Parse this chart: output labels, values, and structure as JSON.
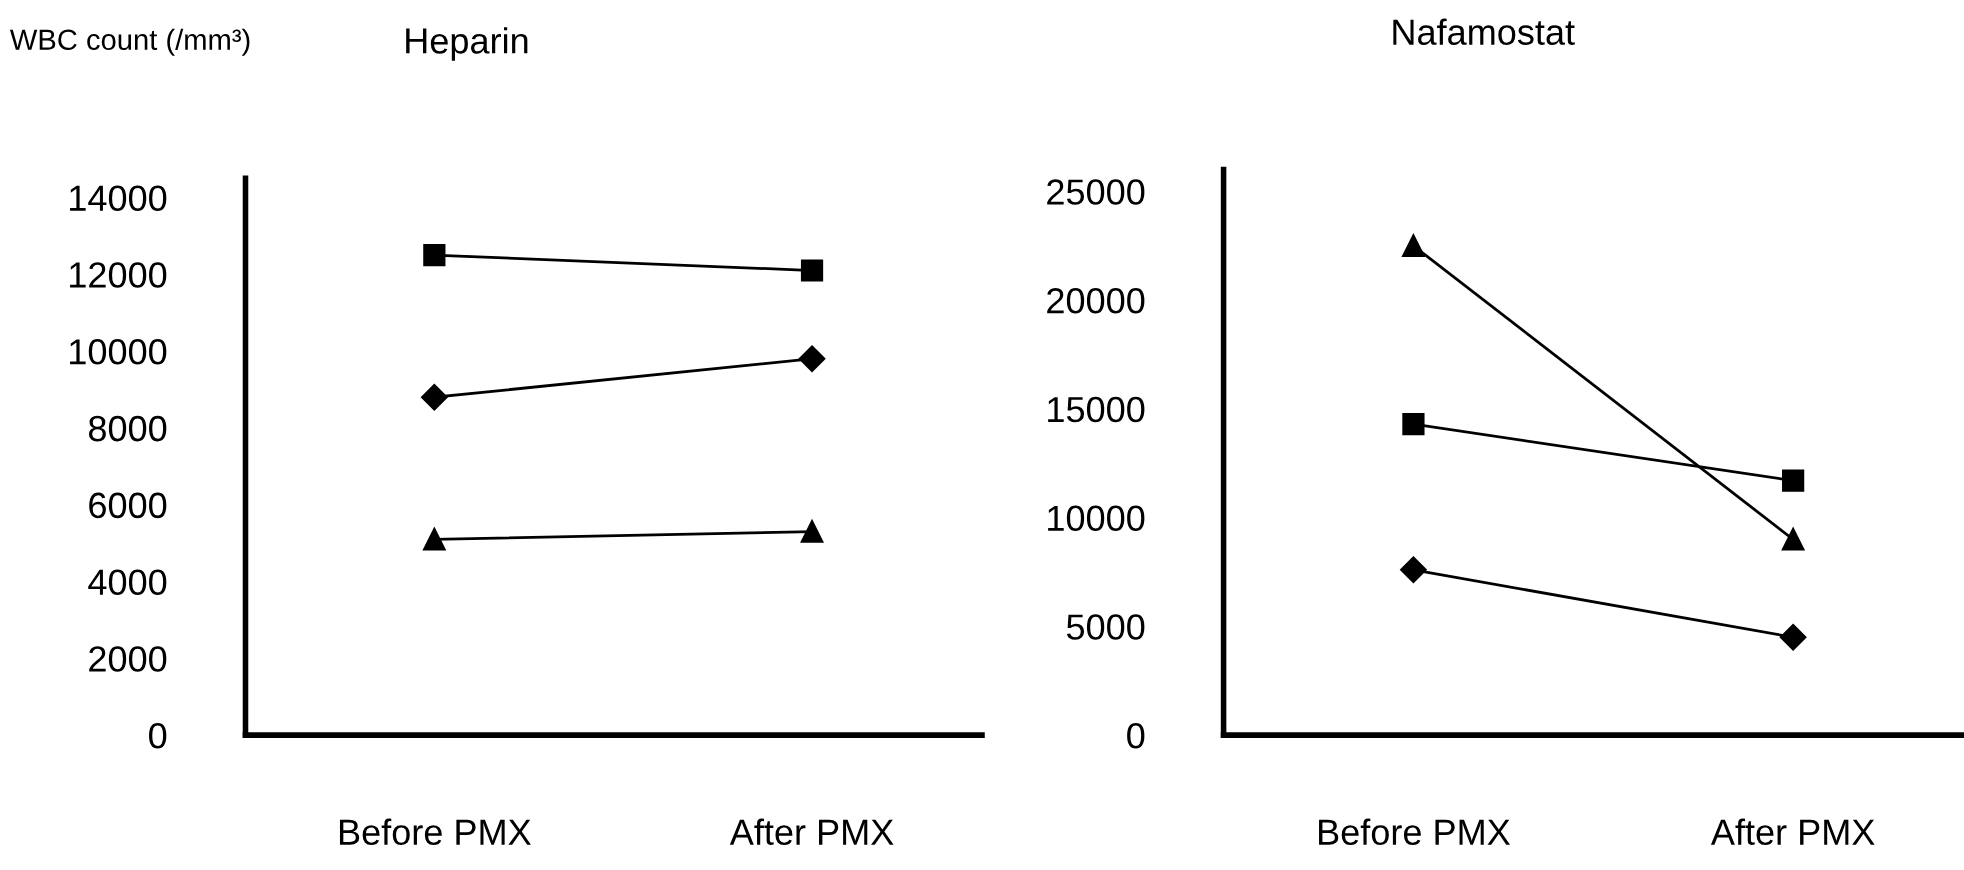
{
  "chart_data": [
    {
      "type": "line",
      "title": "Heparin",
      "ylabel": "WBC count (/mm³)",
      "categories": [
        "Before PMX",
        "After PMX"
      ],
      "ylim": [
        0,
        14500
      ],
      "yticks": [
        0,
        2000,
        4000,
        6000,
        8000,
        10000,
        12000,
        14000
      ],
      "grid": false,
      "legend": false,
      "line_style": "solid",
      "series": [
        {
          "color": "#000000",
          "marker": "square",
          "values": [
            12500,
            12100
          ]
        },
        {
          "color": "#000000",
          "marker": "diamond",
          "values": [
            8800,
            9800
          ]
        },
        {
          "color": "#000000",
          "marker": "triangle",
          "values": [
            5100,
            5300
          ]
        }
      ]
    },
    {
      "type": "line",
      "title": "Nafamostat",
      "categories": [
        "Before PMX",
        "After PMX"
      ],
      "ylim": [
        0,
        26000
      ],
      "yticks": [
        0,
        5000,
        10000,
        15000,
        20000,
        25000
      ],
      "grid": false,
      "legend": false,
      "line_style": "solid",
      "series": [
        {
          "color": "#000000",
          "marker": "triangle",
          "values": [
            22500,
            9000
          ]
        },
        {
          "color": "#000000",
          "marker": "square",
          "values": [
            14300,
            11700
          ]
        },
        {
          "color": "#000000",
          "marker": "diamond",
          "values": [
            7600,
            4500
          ]
        }
      ]
    }
  ]
}
